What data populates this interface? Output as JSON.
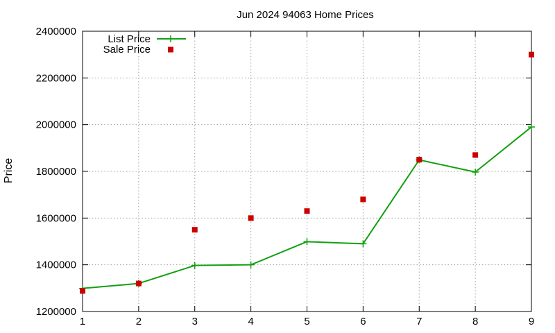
{
  "chart_data": {
    "type": "line",
    "title": "Jun 2024 94063 Home Prices",
    "xlabel": "",
    "ylabel": "Price",
    "x": [
      1,
      2,
      3,
      4,
      5,
      6,
      7,
      8,
      9
    ],
    "xlim": [
      1,
      9
    ],
    "ylim": [
      1200000,
      2400000
    ],
    "xticks": [
      "1",
      "2",
      "3",
      "4",
      "5",
      "6",
      "7",
      "8",
      "9"
    ],
    "yticks": [
      "1200000",
      "1400000",
      "1600000",
      "1800000",
      "2000000",
      "2200000",
      "2400000"
    ],
    "grid": true,
    "legend_position": "top-left",
    "series": [
      {
        "name": "List Price",
        "style": "line-with-plus-markers",
        "color": "#11a011",
        "values": [
          1299000,
          1320000,
          1397000,
          1400000,
          1499000,
          1490000,
          1849000,
          1797000,
          1990000
        ]
      },
      {
        "name": "Sale Price",
        "style": "square-markers",
        "color": "#cc0000",
        "values": [
          1288000,
          1320000,
          1550000,
          1600000,
          1630000,
          1680000,
          1850000,
          1870000,
          2300000
        ]
      }
    ]
  }
}
